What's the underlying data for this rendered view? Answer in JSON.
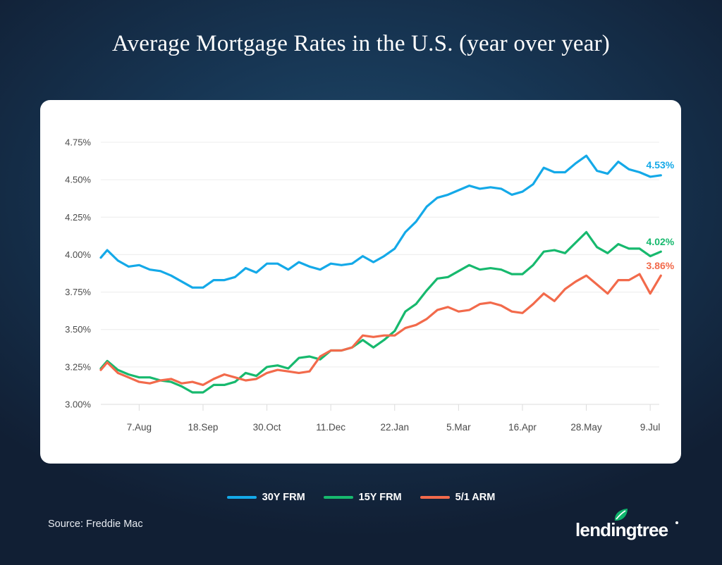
{
  "title": "Average Mortgage Rates in the U.S. (year over year)",
  "source": "Source: Freddie Mac",
  "brand": {
    "name": "lendingtree",
    "leaf_color": "#0fb36b"
  },
  "chart_data": {
    "type": "line",
    "title": "Average Mortgage Rates in the U.S. (year over year)",
    "xlabel": "",
    "ylabel": "",
    "ylim": [
      3.0,
      4.75
    ],
    "yticks": [
      4.75,
      4.5,
      4.25,
      4.0,
      3.75,
      3.5,
      3.25,
      3.0
    ],
    "ytick_labels": [
      "4.75%",
      "4.50%",
      "4.25%",
      "4.00%",
      "3.75%",
      "3.50%",
      "3.25%",
      "3.00%"
    ],
    "xtick_labels": [
      "7.Aug",
      "18.Sep",
      "30.Oct",
      "11.Dec",
      "22.Jan",
      "5.Mar",
      "16.Apr",
      "28.May",
      "9.Jul"
    ],
    "xtick_week_index": [
      3.6,
      9.6,
      15.6,
      21.6,
      27.6,
      33.6,
      39.6,
      45.6,
      51.6
    ],
    "x_week_index": [
      0,
      0.6,
      1.6,
      2.6,
      3.6,
      4.6,
      5.6,
      6.6,
      7.6,
      8.6,
      9.6,
      10.6,
      11.6,
      12.6,
      13.6,
      14.6,
      15.6,
      16.6,
      17.6,
      18.6,
      19.6,
      20.6,
      21.6,
      22.6,
      23.6,
      24.6,
      25.6,
      26.6,
      27.6,
      28.6,
      29.6,
      30.6,
      31.6,
      32.6,
      33.6,
      34.6,
      35.6,
      36.6,
      37.6,
      38.6,
      39.6,
      40.6,
      41.6,
      42.6,
      43.6,
      44.6,
      45.6,
      46.6,
      47.6,
      48.6,
      49.6,
      50.6,
      51.6,
      52.6
    ],
    "grid": true,
    "legend": "bottom",
    "series": [
      {
        "name": "30Y FRM",
        "color": "#14a9e8",
        "end_label": "4.53%",
        "values": [
          3.98,
          4.03,
          3.96,
          3.92,
          3.93,
          3.9,
          3.89,
          3.86,
          3.82,
          3.78,
          3.78,
          3.83,
          3.83,
          3.85,
          3.91,
          3.88,
          3.94,
          3.94,
          3.9,
          3.95,
          3.92,
          3.9,
          3.94,
          3.93,
          3.94,
          3.99,
          3.95,
          3.99,
          4.04,
          4.15,
          4.22,
          4.32,
          4.38,
          4.4,
          4.43,
          4.46,
          4.44,
          4.45,
          4.44,
          4.4,
          4.42,
          4.47,
          4.58,
          4.55,
          4.55,
          4.61,
          4.66,
          4.56,
          4.54,
          4.62,
          4.57,
          4.55,
          4.52,
          4.53
        ]
      },
      {
        "name": "15Y FRM",
        "color": "#17b96e",
        "end_label": "4.02%",
        "values": [
          3.24,
          3.29,
          3.23,
          3.2,
          3.18,
          3.18,
          3.16,
          3.15,
          3.12,
          3.08,
          3.08,
          3.13,
          3.13,
          3.15,
          3.21,
          3.19,
          3.25,
          3.26,
          3.24,
          3.31,
          3.32,
          3.3,
          3.36,
          3.36,
          3.38,
          3.43,
          3.38,
          3.43,
          3.49,
          3.62,
          3.67,
          3.76,
          3.84,
          3.85,
          3.89,
          3.93,
          3.9,
          3.91,
          3.9,
          3.87,
          3.87,
          3.93,
          4.02,
          4.03,
          4.01,
          4.08,
          4.15,
          4.05,
          4.01,
          4.07,
          4.04,
          4.04,
          3.99,
          4.02
        ]
      },
      {
        "name": "5/1 ARM",
        "color": "#f26a4b",
        "end_label": "3.86%",
        "values": [
          3.23,
          3.28,
          3.21,
          3.18,
          3.15,
          3.14,
          3.16,
          3.17,
          3.14,
          3.15,
          3.13,
          3.17,
          3.2,
          3.18,
          3.16,
          3.17,
          3.21,
          3.23,
          3.22,
          3.21,
          3.22,
          3.32,
          3.36,
          3.36,
          3.38,
          3.46,
          3.45,
          3.46,
          3.46,
          3.51,
          3.53,
          3.57,
          3.63,
          3.65,
          3.62,
          3.63,
          3.67,
          3.68,
          3.66,
          3.62,
          3.61,
          3.67,
          3.74,
          3.69,
          3.77,
          3.82,
          3.86,
          3.8,
          3.74,
          3.83,
          3.83,
          3.87,
          3.74,
          3.86
        ]
      }
    ]
  }
}
